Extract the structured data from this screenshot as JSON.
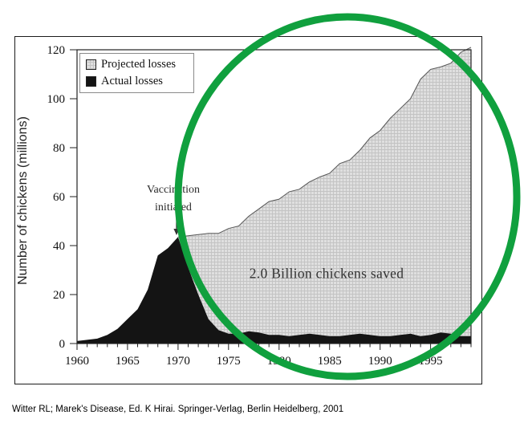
{
  "page": {
    "citation": "Witter RL; Marek's Disease, Ed. K Hirai. Springer-Verlag, Berlin Heidelberg, 2001"
  },
  "chart_data": {
    "type": "area",
    "title": "",
    "xlabel": "",
    "ylabel": "Number of chickens (millions)",
    "xlim": [
      1960,
      1999
    ],
    "ylim": [
      0,
      120
    ],
    "x_ticks": [
      1960,
      1965,
      1970,
      1975,
      1980,
      1985,
      1990,
      1995
    ],
    "y_ticks": [
      0,
      20,
      40,
      60,
      80,
      100,
      120
    ],
    "grid": false,
    "legend_position": "top-left",
    "legend": [
      {
        "label": "Projected losses",
        "fill": "#dfdfdf",
        "pattern": "grid",
        "edge": "#555555"
      },
      {
        "label": "Actual losses",
        "fill": "#141414",
        "pattern": "solid",
        "edge": "#141414"
      }
    ],
    "series": [
      {
        "name": "Projected losses",
        "x": [
          1970,
          1971,
          1972,
          1973,
          1974,
          1975,
          1976,
          1977,
          1978,
          1979,
          1980,
          1981,
          1982,
          1983,
          1984,
          1985,
          1986,
          1987,
          1988,
          1989,
          1990,
          1991,
          1992,
          1993,
          1994,
          1995,
          1996,
          1997,
          1998,
          1999
        ],
        "values": [
          43.5,
          44,
          44.5,
          45,
          45,
          47,
          48,
          52,
          55,
          58,
          59,
          62,
          63,
          66,
          68,
          69.5,
          73.5,
          75,
          79,
          84,
          87,
          92,
          96,
          100,
          108,
          112,
          113,
          114.5,
          119,
          121
        ]
      },
      {
        "name": "Actual losses",
        "x": [
          1960,
          1961,
          1962,
          1963,
          1964,
          1965,
          1966,
          1967,
          1968,
          1969,
          1970,
          1971,
          1972,
          1973,
          1974,
          1975,
          1976,
          1977,
          1978,
          1979,
          1980,
          1981,
          1982,
          1983,
          1984,
          1985,
          1986,
          1987,
          1988,
          1989,
          1990,
          1991,
          1992,
          1993,
          1994,
          1995,
          1996,
          1997,
          1998,
          1999
        ],
        "values": [
          1,
          1.5,
          2,
          3.5,
          6,
          10,
          14,
          22,
          36,
          39,
          43.5,
          31,
          20,
          10,
          5.5,
          4,
          4,
          5,
          4.5,
          3.5,
          3.5,
          3,
          3.5,
          4,
          3.5,
          3,
          3,
          3.5,
          4,
          3.5,
          3,
          3,
          3.5,
          4,
          3,
          3.5,
          4.5,
          4,
          3,
          3
        ]
      }
    ],
    "annotations": [
      {
        "text": "Vaccination initiated",
        "x": 1970,
        "y": 48,
        "arrow": "down"
      },
      {
        "text": "2.0 Billion chickens saved",
        "x": 1984.7,
        "y": 28.5
      }
    ],
    "highlight_circle": {
      "color": "#10a03e"
    }
  }
}
